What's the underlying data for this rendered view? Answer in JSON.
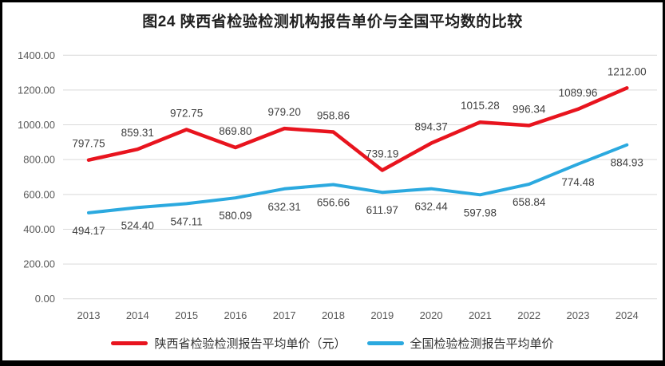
{
  "title": "图24 陕西省检验检测机构报告单价与全国平均数的比较",
  "legend": {
    "items": [
      {
        "label": "陕西省检验检测报告平均单价（元）",
        "color": "#e8141e"
      },
      {
        "label": "全国检验检测报告平均单价",
        "color": "#2ba9df"
      }
    ]
  },
  "colors": {
    "shaanxi_line": "#e8141e",
    "national_line": "#2ba9df",
    "gridline": "#d9d9d9",
    "axis_text": "#595959",
    "data_label_text": "#404040",
    "border": "#000000"
  },
  "chart_data": {
    "type": "line",
    "title": "图24 陕西省检验检测机构报告单价与全国平均数的比较",
    "categories": [
      "2013",
      "2014",
      "2015",
      "2016",
      "2017",
      "2018",
      "2019",
      "2020",
      "2021",
      "2022",
      "2023",
      "2024"
    ],
    "series": [
      {
        "name": "陕西省检验检测报告平均单价（元）",
        "color": "#e8141e",
        "label_position": "above",
        "values": [
          797.75,
          859.31,
          972.75,
          869.8,
          979.2,
          958.86,
          739.19,
          894.37,
          1015.28,
          996.34,
          1089.96,
          1212.0
        ]
      },
      {
        "name": "全国检验检测报告平均单价",
        "color": "#2ba9df",
        "label_position": "below",
        "values": [
          494.17,
          524.4,
          547.11,
          580.09,
          632.31,
          656.66,
          611.97,
          632.44,
          597.98,
          658.84,
          774.48,
          884.93
        ]
      }
    ],
    "xlabel": "",
    "ylabel": "",
    "ylim": [
      0,
      1400
    ],
    "ytick_step": 200,
    "ytick_decimals": 2,
    "data_label_decimals": 2,
    "grid": true,
    "legend_position": "bottom"
  }
}
